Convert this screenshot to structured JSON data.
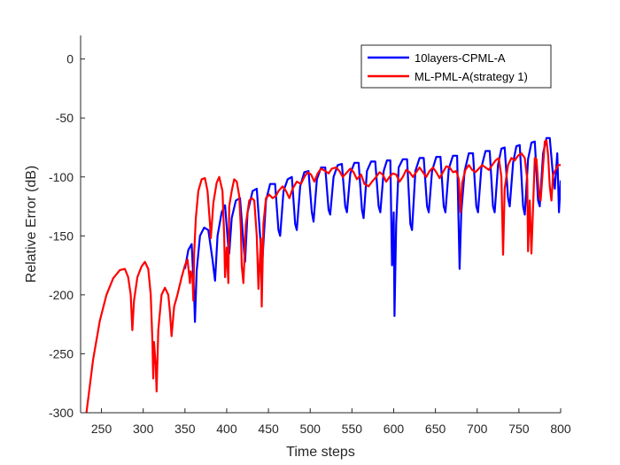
{
  "chart_data": {
    "type": "line",
    "title": "",
    "xlabel": "Time steps",
    "ylabel": "Relative Error (dB)",
    "xlim": [
      225,
      800
    ],
    "ylim": [
      -300,
      20
    ],
    "xticks": [
      250,
      300,
      350,
      400,
      450,
      500,
      550,
      600,
      650,
      700,
      750,
      800
    ],
    "yticks": [
      0,
      -50,
      -100,
      -150,
      -200,
      -250,
      -300
    ],
    "grid": false,
    "legend_position": "top-right",
    "series": [
      {
        "name": "10layers-CPML-A",
        "color": "#0000ff",
        "points": [
          [
            350,
            -178
          ],
          [
            354,
            -162
          ],
          [
            358,
            -157
          ],
          [
            361,
            -200
          ],
          [
            362,
            -223
          ],
          [
            364,
            -180
          ],
          [
            368,
            -150
          ],
          [
            373,
            -143
          ],
          [
            378,
            -145
          ],
          [
            383,
            -170
          ],
          [
            386,
            -188
          ],
          [
            389,
            -150
          ],
          [
            394,
            -130
          ],
          [
            398,
            -124
          ],
          [
            402,
            -160
          ],
          [
            403,
            -165
          ],
          [
            406,
            -135
          ],
          [
            411,
            -120
          ],
          [
            416,
            -118
          ],
          [
            421,
            -165
          ],
          [
            422,
            -172
          ],
          [
            425,
            -130
          ],
          [
            431,
            -112
          ],
          [
            436,
            -110
          ],
          [
            441,
            -160
          ],
          [
            443,
            -168
          ],
          [
            447,
            -120
          ],
          [
            452,
            -106
          ],
          [
            458,
            -106
          ],
          [
            462,
            -145
          ],
          [
            464,
            -150
          ],
          [
            468,
            -112
          ],
          [
            473,
            -102
          ],
          [
            478,
            -100
          ],
          [
            482,
            -140
          ],
          [
            484,
            -145
          ],
          [
            488,
            -108
          ],
          [
            493,
            -96
          ],
          [
            498,
            -95
          ],
          [
            502,
            -130
          ],
          [
            504,
            -138
          ],
          [
            508,
            -102
          ],
          [
            513,
            -92
          ],
          [
            518,
            -92
          ],
          [
            522,
            -128
          ],
          [
            524,
            -132
          ],
          [
            528,
            -100
          ],
          [
            533,
            -90
          ],
          [
            538,
            -89
          ],
          [
            542,
            -125
          ],
          [
            544,
            -130
          ],
          [
            548,
            -97
          ],
          [
            553,
            -88
          ],
          [
            558,
            -88
          ],
          [
            562,
            -128
          ],
          [
            564,
            -135
          ],
          [
            568,
            -95
          ],
          [
            573,
            -87
          ],
          [
            578,
            -87
          ],
          [
            582,
            -125
          ],
          [
            584,
            -130
          ],
          [
            588,
            -95
          ],
          [
            592,
            -86
          ],
          [
            596,
            -86
          ],
          [
            598,
            -175
          ],
          [
            600,
            -130
          ],
          [
            601,
            -218
          ],
          [
            603,
            -140
          ],
          [
            606,
            -92
          ],
          [
            611,
            -85
          ],
          [
            616,
            -85
          ],
          [
            620,
            -140
          ],
          [
            622,
            -145
          ],
          [
            626,
            -95
          ],
          [
            631,
            -84
          ],
          [
            636,
            -84
          ],
          [
            640,
            -125
          ],
          [
            642,
            -130
          ],
          [
            646,
            -95
          ],
          [
            651,
            -83
          ],
          [
            656,
            -83
          ],
          [
            660,
            -125
          ],
          [
            662,
            -130
          ],
          [
            666,
            -93
          ],
          [
            671,
            -82
          ],
          [
            676,
            -82
          ],
          [
            679,
            -178
          ],
          [
            681,
            -130
          ],
          [
            685,
            -95
          ],
          [
            690,
            -80
          ],
          [
            695,
            -80
          ],
          [
            699,
            -125
          ],
          [
            701,
            -130
          ],
          [
            705,
            -92
          ],
          [
            710,
            -78
          ],
          [
            715,
            -78
          ],
          [
            719,
            -125
          ],
          [
            721,
            -130
          ],
          [
            725,
            -90
          ],
          [
            729,
            -76
          ],
          [
            733,
            -75
          ],
          [
            737,
            -118
          ],
          [
            739,
            -125
          ],
          [
            743,
            -88
          ],
          [
            747,
            -74
          ],
          [
            751,
            -73
          ],
          [
            755,
            -125
          ],
          [
            757,
            -132
          ],
          [
            761,
            -85
          ],
          [
            765,
            -71
          ],
          [
            769,
            -70
          ],
          [
            773,
            -120
          ],
          [
            775,
            -125
          ],
          [
            779,
            -80
          ],
          [
            783,
            -67
          ],
          [
            787,
            -67
          ],
          [
            791,
            -100
          ],
          [
            793,
            -110
          ],
          [
            796,
            -80
          ],
          [
            798,
            -130
          ],
          [
            800,
            -103
          ]
        ]
      },
      {
        "name": "ML-PML-A(strategy 1)",
        "color": "#ff0000",
        "points": [
          [
            232,
            -300
          ],
          [
            240,
            -255
          ],
          [
            248,
            -222
          ],
          [
            256,
            -200
          ],
          [
            264,
            -186
          ],
          [
            272,
            -179
          ],
          [
            278,
            -178
          ],
          [
            282,
            -185
          ],
          [
            285,
            -200
          ],
          [
            287,
            -230
          ],
          [
            289,
            -205
          ],
          [
            293,
            -185
          ],
          [
            298,
            -176
          ],
          [
            302,
            -172
          ],
          [
            306,
            -178
          ],
          [
            309,
            -200
          ],
          [
            311,
            -240
          ],
          [
            312,
            -271
          ],
          [
            313,
            -240
          ],
          [
            315,
            -260
          ],
          [
            316,
            -282
          ],
          [
            318,
            -230
          ],
          [
            322,
            -200
          ],
          [
            326,
            -194
          ],
          [
            330,
            -200
          ],
          [
            332,
            -215
          ],
          [
            334,
            -235
          ],
          [
            337,
            -210
          ],
          [
            341,
            -200
          ],
          [
            346,
            -185
          ],
          [
            350,
            -175
          ],
          [
            353,
            -170
          ],
          [
            356,
            -190
          ],
          [
            357,
            -180
          ],
          [
            359,
            -185
          ],
          [
            360,
            -205
          ],
          [
            361,
            -165
          ],
          [
            363,
            -135
          ],
          [
            366,
            -112
          ],
          [
            370,
            -102
          ],
          [
            374,
            -101
          ],
          [
            377,
            -112
          ],
          [
            380,
            -140
          ],
          [
            381,
            -152
          ],
          [
            384,
            -122
          ],
          [
            388,
            -105
          ],
          [
            391,
            -100
          ],
          [
            395,
            -112
          ],
          [
            397,
            -150
          ],
          [
            398,
            -185
          ],
          [
            400,
            -160
          ],
          [
            402,
            -190
          ],
          [
            403,
            -125
          ],
          [
            406,
            -112
          ],
          [
            409,
            -102
          ],
          [
            412,
            -104
          ],
          [
            415,
            -116
          ],
          [
            417,
            -145
          ],
          [
            418,
            -175
          ],
          [
            420,
            -190
          ],
          [
            423,
            -140
          ],
          [
            427,
            -120
          ],
          [
            430,
            -118
          ],
          [
            433,
            -120
          ],
          [
            436,
            -150
          ],
          [
            438,
            -195
          ],
          [
            441,
            -152
          ],
          [
            442,
            -210
          ],
          [
            444,
            -140
          ],
          [
            447,
            -118
          ],
          [
            451,
            -115
          ],
          [
            455,
            -118
          ],
          [
            459,
            -116
          ],
          [
            462,
            -112
          ],
          [
            467,
            -108
          ],
          [
            471,
            -112
          ],
          [
            475,
            -118
          ],
          [
            479,
            -110
          ],
          [
            484,
            -104
          ],
          [
            489,
            -106
          ],
          [
            493,
            -100
          ],
          [
            497,
            -96
          ],
          [
            501,
            -98
          ],
          [
            505,
            -104
          ],
          [
            509,
            -97
          ],
          [
            513,
            -93
          ],
          [
            518,
            -95
          ],
          [
            522,
            -97
          ],
          [
            526,
            -93
          ],
          [
            531,
            -92
          ],
          [
            535,
            -95
          ],
          [
            539,
            -100
          ],
          [
            543,
            -97
          ],
          [
            548,
            -93
          ],
          [
            552,
            -96
          ],
          [
            556,
            -102
          ],
          [
            561,
            -98
          ],
          [
            565,
            -106
          ],
          [
            570,
            -108
          ],
          [
            574,
            -104
          ],
          [
            579,
            -100
          ],
          [
            583,
            -96
          ],
          [
            587,
            -98
          ],
          [
            591,
            -104
          ],
          [
            595,
            -100
          ],
          [
            599,
            -97
          ],
          [
            603,
            -98
          ],
          [
            607,
            -104
          ],
          [
            611,
            -100
          ],
          [
            615,
            -94
          ],
          [
            619,
            -96
          ],
          [
            623,
            -100
          ],
          [
            627,
            -96
          ],
          [
            631,
            -92
          ],
          [
            635,
            -96
          ],
          [
            639,
            -100
          ],
          [
            643,
            -95
          ],
          [
            647,
            -92
          ],
          [
            651,
            -96
          ],
          [
            655,
            -101
          ],
          [
            659,
            -96
          ],
          [
            663,
            -91
          ],
          [
            667,
            -92
          ],
          [
            671,
            -96
          ],
          [
            675,
            -95
          ],
          [
            678,
            -102
          ],
          [
            680,
            -130
          ],
          [
            682,
            -105
          ],
          [
            686,
            -94
          ],
          [
            690,
            -90
          ],
          [
            694,
            -94
          ],
          [
            698,
            -96
          ],
          [
            702,
            -93
          ],
          [
            706,
            -90
          ],
          [
            710,
            -92
          ],
          [
            714,
            -94
          ],
          [
            718,
            -90
          ],
          [
            722,
            -86
          ],
          [
            726,
            -84
          ],
          [
            729,
            -100
          ],
          [
            731,
            -166
          ],
          [
            733,
            -110
          ],
          [
            737,
            -90
          ],
          [
            741,
            -84
          ],
          [
            745,
            -86
          ],
          [
            749,
            -82
          ],
          [
            753,
            -80
          ],
          [
            757,
            -84
          ],
          [
            760,
            -102
          ],
          [
            761,
            -163
          ],
          [
            763,
            -120
          ],
          [
            765,
            -165
          ],
          [
            767,
            -125
          ],
          [
            769,
            -84
          ],
          [
            771,
            -85
          ],
          [
            774,
            -115
          ],
          [
            776,
            -120
          ],
          [
            778,
            -100
          ],
          [
            781,
            -70
          ],
          [
            783,
            -69
          ],
          [
            785,
            -82
          ],
          [
            787,
            -108
          ],
          [
            789,
            -120
          ],
          [
            791,
            -98
          ],
          [
            794,
            -94
          ],
          [
            797,
            -90
          ],
          [
            800,
            -90
          ]
        ]
      }
    ]
  }
}
